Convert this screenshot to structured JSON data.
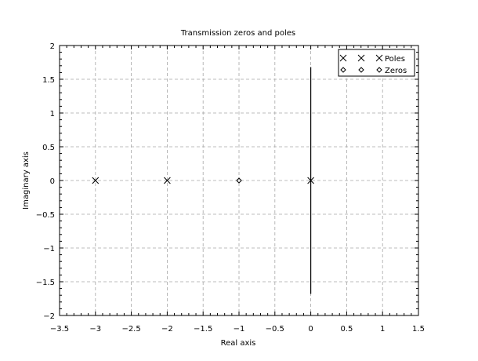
{
  "chart_data": {
    "type": "scatter",
    "title": "Transmission zeros and poles",
    "xlabel": "Real axis",
    "ylabel": "Imaginary axis",
    "xlim": [
      -3.5,
      1.5
    ],
    "ylim": [
      -2,
      2
    ],
    "xticks": [
      -3.5,
      -3,
      -2.5,
      -2,
      -1.5,
      -1,
      -0.5,
      0,
      0.5,
      1,
      1.5
    ],
    "xtick_labels": [
      "−3.5",
      "−3",
      "−2.5",
      "−2",
      "−1.5",
      "−1",
      "−0.5",
      "0",
      "0.5",
      "1",
      "1.5"
    ],
    "yticks": [
      -2,
      -1.5,
      -1,
      -0.5,
      0,
      0.5,
      1,
      1.5,
      2
    ],
    "ytick_labels": [
      "−2",
      "−1.5",
      "−1",
      "−0.5",
      "0",
      "0.5",
      "1",
      "1.5",
      "2"
    ],
    "grid": true,
    "legend_position": "top-right",
    "series": [
      {
        "name": "Poles",
        "marker": "x",
        "points": [
          [
            -3,
            0
          ],
          [
            -2,
            0
          ],
          [
            0,
            0
          ]
        ]
      },
      {
        "name": "Zeros",
        "marker": "diamond",
        "points": [
          [
            -1,
            0
          ]
        ]
      }
    ],
    "annotations": [
      {
        "type": "vertical-line",
        "x": 0,
        "y_range": [
          -1.68,
          1.68
        ]
      }
    ]
  }
}
